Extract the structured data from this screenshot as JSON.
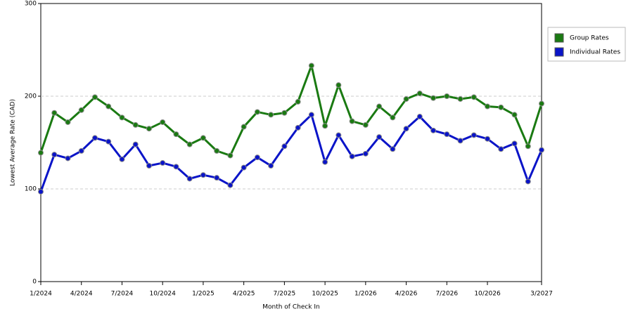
{
  "chart_data": {
    "type": "line",
    "x_label": "Month of Check In",
    "y_label": "Lowest Average Rate (CAD)",
    "categories": [
      "1/2024",
      null,
      null,
      "4/2024",
      null,
      null,
      "7/2024",
      null,
      null,
      "10/2024",
      null,
      null,
      "1/2025",
      null,
      null,
      "4/2025",
      null,
      null,
      "7/2025",
      null,
      null,
      "10/2025",
      null,
      null,
      "1/2026",
      null,
      null,
      "4/2026",
      null,
      null,
      "7/2026",
      null,
      null,
      "10/2026",
      null,
      null,
      null,
      "3/2027"
    ],
    "series": [
      {
        "name": "Group Rates",
        "color": "#1a7a12",
        "values": [
          139,
          182,
          172,
          185,
          199,
          189,
          177,
          169,
          165,
          172,
          159,
          148,
          155,
          141,
          136,
          167,
          183,
          180,
          182,
          194,
          233,
          168,
          212,
          173,
          169,
          189,
          177,
          197,
          203,
          198,
          200,
          197,
          199,
          189,
          188,
          180,
          146,
          192
        ]
      },
      {
        "name": "Individual Rates",
        "color": "#0a14c8",
        "values": [
          97,
          137,
          133,
          141,
          155,
          151,
          132,
          148,
          125,
          128,
          124,
          111,
          115,
          112,
          104,
          123,
          134,
          125,
          146,
          166,
          180,
          129,
          158,
          135,
          138,
          156,
          143,
          165,
          178,
          163,
          159,
          152,
          158,
          154,
          143,
          149,
          108,
          142
        ]
      }
    ],
    "ylim": [
      0,
      300
    ],
    "yticks": [
      0,
      100,
      200,
      300
    ],
    "grid": true,
    "legend": "right"
  }
}
